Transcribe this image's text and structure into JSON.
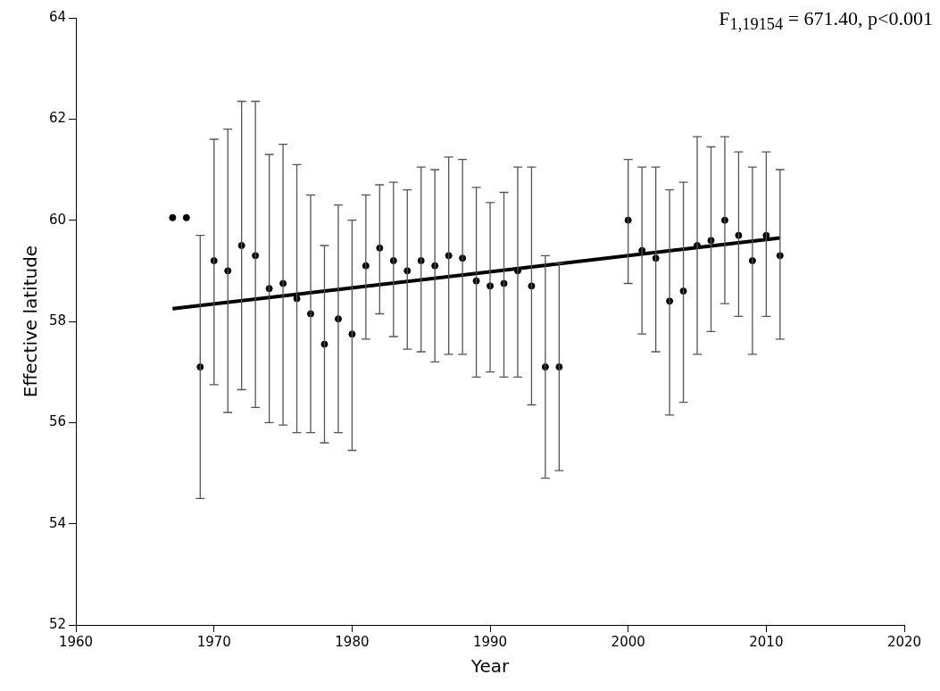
{
  "chart_data": {
    "type": "scatter",
    "xlabel": "Year",
    "ylabel": "Effective latitude",
    "xlim": [
      1960,
      2020
    ],
    "xticks": [
      1960,
      1970,
      1980,
      1990,
      2000,
      2010,
      2020
    ],
    "ylim": [
      52,
      64
    ],
    "yticks": [
      52,
      54,
      56,
      58,
      60,
      62,
      64
    ],
    "grid": false,
    "legend": false,
    "annotations": [
      "F$_{1,19154}$ = 671.40, p<0.001"
    ],
    "series": [
      {
        "color": "#000000",
        "marker": "circle",
        "x": [
          1967,
          1968,
          1969,
          1970,
          1971,
          1972,
          1973,
          1974,
          1975,
          1976,
          1977,
          1978,
          1979,
          1980,
          1981,
          1982,
          1983,
          1984,
          1985,
          1986,
          1987,
          1988,
          1989,
          1990,
          1991,
          1992,
          1993,
          1994,
          1995,
          2000,
          2001,
          2002,
          2003,
          2004,
          2005,
          2006,
          2007,
          2008,
          2009,
          2010,
          2011
        ],
        "values": [
          60.05,
          60.05,
          57.1,
          59.2,
          59.0,
          59.5,
          59.3,
          58.65,
          58.75,
          58.45,
          58.15,
          57.55,
          58.05,
          57.75,
          59.1,
          59.45,
          59.2,
          59.0,
          59.2,
          59.1,
          59.3,
          59.25,
          58.8,
          58.7,
          58.75,
          59.0,
          58.7,
          57.1,
          57.1,
          60.0,
          59.4,
          59.25,
          58.4,
          58.6,
          59.5,
          59.6,
          60.0,
          59.7,
          59.2,
          59.7,
          59.3
        ],
        "errors": [
          null,
          null,
          [
            54.5,
            59.7
          ],
          [
            56.75,
            61.6
          ],
          [
            56.2,
            61.8
          ],
          [
            56.65,
            62.35
          ],
          [
            56.3,
            62.35
          ],
          [
            56.0,
            61.3
          ],
          [
            55.95,
            61.5
          ],
          [
            55.8,
            61.1
          ],
          [
            55.8,
            60.5
          ],
          [
            55.6,
            59.5
          ],
          [
            55.8,
            60.3
          ],
          [
            55.45,
            60.0
          ],
          [
            57.65,
            60.5
          ],
          [
            58.15,
            60.7
          ],
          [
            57.7,
            60.75
          ],
          [
            57.45,
            60.6
          ],
          [
            57.4,
            61.05
          ],
          [
            57.2,
            61.0
          ],
          [
            57.35,
            61.25
          ],
          [
            57.35,
            61.2
          ],
          [
            56.9,
            60.65
          ],
          [
            57.0,
            60.35
          ],
          [
            56.9,
            60.55
          ],
          [
            56.9,
            61.05
          ],
          [
            56.35,
            61.05
          ],
          [
            54.9,
            59.3
          ],
          [
            55.05,
            59.15
          ],
          [
            58.75,
            61.2
          ],
          [
            57.75,
            61.05
          ],
          [
            57.4,
            61.05
          ],
          [
            56.15,
            60.6
          ],
          [
            56.4,
            60.75
          ],
          [
            57.35,
            61.65
          ],
          [
            57.8,
            61.45
          ],
          [
            58.35,
            61.65
          ],
          [
            58.1,
            61.35
          ],
          [
            57.35,
            61.05
          ],
          [
            58.1,
            61.35
          ],
          [
            57.65,
            61.0
          ]
        ]
      },
      {
        "type": "line",
        "color": "#000000",
        "x": [
          1967,
          2011
        ],
        "values": [
          58.25,
          59.65
        ]
      }
    ]
  }
}
